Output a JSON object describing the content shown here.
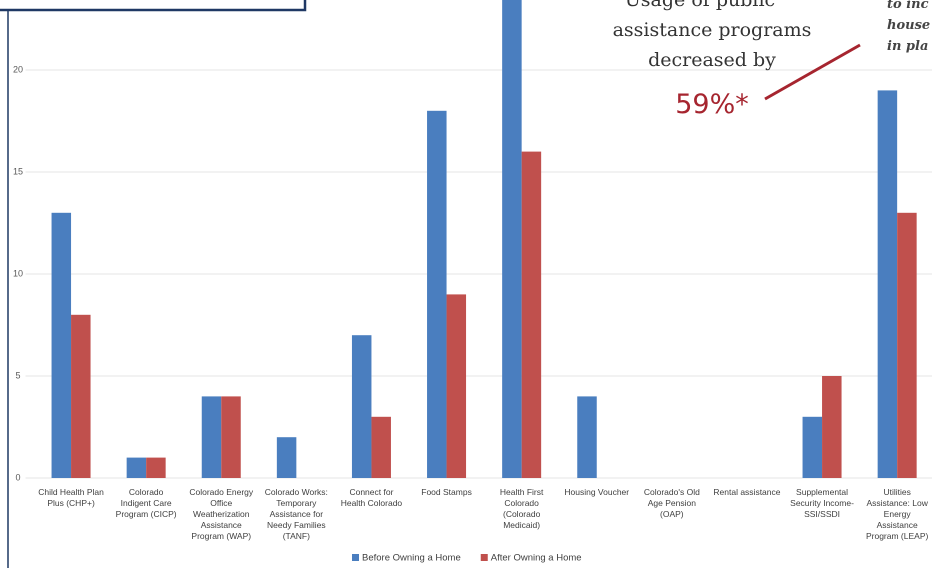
{
  "chart_data": {
    "type": "bar",
    "categories": [
      "Child Health Plan\nPlus (CHP+)",
      "Colorado\nIndigent Care\nProgram (CICP)",
      "Colorado Energy\nOffice\nWeatherization\nAssistance\nProgram (WAP)",
      "Colorado Works:\nTemporary\nAssistance for\nNeedy Families\n(TANF)",
      "Connect for\nHealth Colorado",
      "Food Stamps",
      "Health First\nColorado\n(Colorado\nMedicaid)",
      "Housing Voucher",
      "Colorado's Old\nAge Pension\n(OAP)",
      "Rental assistance",
      "Supplemental\nSecurity Income-\nSSI/SSDI",
      "Utilities\nAssistance: Low\nEnergy\nAssistance\nProgram (LEAP)"
    ],
    "series": [
      {
        "name": "Before Owning a Home",
        "color": "#4a7ebf",
        "values": [
          13,
          1,
          4,
          2,
          7,
          18,
          24,
          4,
          0,
          0,
          3,
          19
        ]
      },
      {
        "name": "After Owning a Home",
        "color": "#c0504d",
        "values": [
          8,
          1,
          4,
          0,
          3,
          9,
          16,
          0,
          0,
          0,
          5,
          13
        ]
      }
    ],
    "ylim": [
      0,
      25
    ],
    "yticks": [
      0,
      5,
      10,
      15,
      20
    ],
    "grid": true,
    "legend": "bottom",
    "annotations": [
      "Usage of public",
      "assistance programs",
      "decreased by",
      "59%*"
    ],
    "side_note": [
      "to inc",
      "house",
      "in pla"
    ]
  }
}
